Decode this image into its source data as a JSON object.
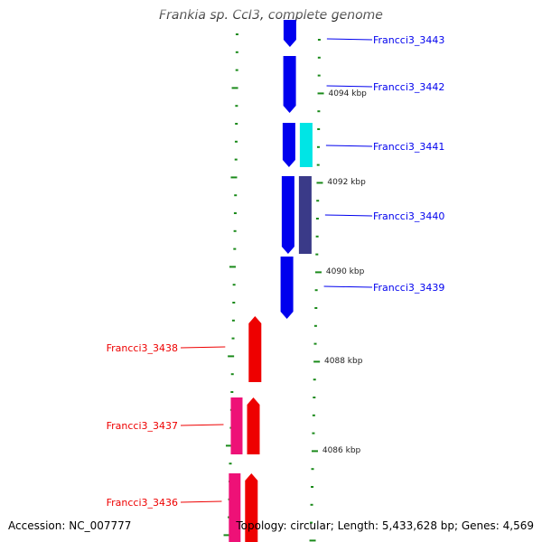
{
  "title": "Frankia sp. CcI3, complete genome",
  "footer": {
    "accession": "Accession: NC_007777",
    "topology": "Topology: circular; Length: 5,433,628 bp; Genes: 4,569"
  },
  "colors": {
    "backbone": "#888888",
    "tick": "#1a8a1a",
    "forward_gene": "#0000ee",
    "reverse_gene": "#ee0000",
    "cyan_feature": "#00e5e5",
    "slate_feature": "#3a3a88",
    "pink_feature": "#ee1177"
  },
  "scale_labels": [
    "4094 kbp",
    "4092 kbp",
    "4090 kbp",
    "4088 kbp",
    "4086 kbp"
  ],
  "genes": [
    {
      "name": "Francci3_3443",
      "strand": "forward",
      "feature": "cds"
    },
    {
      "name": "Francci3_3442",
      "strand": "forward",
      "feature": "cds"
    },
    {
      "name": "Francci3_3441",
      "strand": "forward",
      "feature": "cds",
      "companion": "cyan"
    },
    {
      "name": "Francci3_3440",
      "strand": "forward",
      "feature": "cds",
      "companion": "slate"
    },
    {
      "name": "Francci3_3439",
      "strand": "forward",
      "feature": "cds"
    },
    {
      "name": "Francci3_3438",
      "strand": "reverse",
      "feature": "cds"
    },
    {
      "name": "Francci3_3437",
      "strand": "reverse",
      "feature": "cds",
      "companion": "pink"
    },
    {
      "name": "Francci3_3436",
      "strand": "reverse",
      "feature": "cds",
      "companion": "pink"
    }
  ]
}
